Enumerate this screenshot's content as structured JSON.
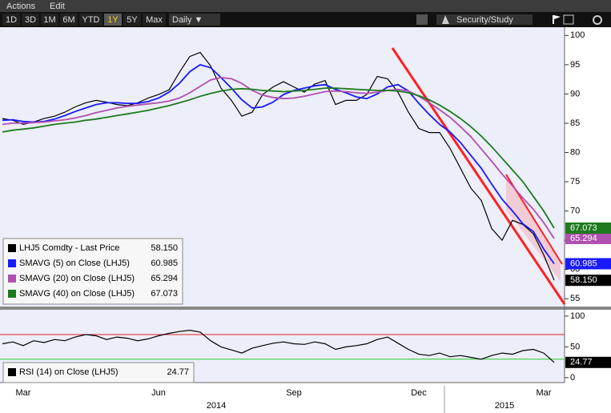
{
  "toolbar": {
    "menu": [
      "Actions",
      "Edit"
    ],
    "periods": [
      "1D",
      "3D",
      "1M",
      "6M",
      "YTD",
      "1Y",
      "5Y",
      "Max"
    ],
    "selected": 5,
    "frequency": "Daily ▼",
    "study": "Security/Study"
  },
  "chart_data": [
    {
      "type": "line",
      "categories": [
        null,
        null,
        "Mar",
        null,
        null,
        null,
        null,
        null,
        null,
        null,
        null,
        null,
        null,
        null,
        null,
        "Jun",
        null,
        null,
        null,
        null,
        null,
        null,
        null,
        null,
        null,
        null,
        null,
        null,
        "Sep",
        null,
        null,
        null,
        null,
        null,
        null,
        null,
        null,
        null,
        null,
        null,
        "Dec",
        null,
        null,
        null,
        null,
        null,
        null,
        null,
        null,
        null,
        null,
        null,
        "Mar",
        null
      ],
      "ylim": [
        53.8,
        101
      ],
      "yticks": [
        55,
        60,
        65,
        70,
        75,
        80,
        85,
        90,
        95,
        100
      ],
      "legend": "bottom-left",
      "series": [
        {
          "name": "LHJ5 Comdty - Last Price",
          "color": "#000000",
          "values": [
            85.8,
            85.5,
            84.8,
            85.2,
            85.8,
            86.2,
            86.9,
            87.8,
            88.5,
            88.9,
            88.6,
            88.2,
            88,
            88.5,
            89.3,
            89.9,
            90.7,
            93.7,
            96.4,
            97.1,
            94.8,
            91,
            88.9,
            86.2,
            86.9,
            89.9,
            91.2,
            92.1,
            91.2,
            90.3,
            91.7,
            92.3,
            88.2,
            88.9,
            88.9,
            89.9,
            93,
            92.6,
            90.3,
            86.9,
            84.1,
            83.4,
            83.4,
            80.7,
            77.3,
            73.9,
            71.8,
            67,
            65,
            68.4,
            67.7,
            66.1,
            62.5,
            58.15
          ],
          "value_labels": [
            null,
            null,
            null,
            null,
            null,
            null,
            null,
            null,
            null,
            null,
            null,
            null,
            null,
            null,
            null,
            null,
            null,
            null,
            null,
            null,
            null,
            null,
            null,
            null,
            null,
            null,
            null,
            null,
            null,
            null,
            null,
            null,
            null,
            null,
            null,
            null,
            null,
            null,
            null,
            null,
            null,
            null,
            null,
            null,
            null,
            null,
            null,
            null,
            null,
            null,
            null,
            null,
            null,
            "58.150"
          ]
        },
        {
          "name": "SMAVG (5) on Close (LHJ5)",
          "color": "#1a1aff",
          "values": [
            85.5,
            85.6,
            85.3,
            85.2,
            85.3,
            85.7,
            86.3,
            87,
            87.6,
            88.2,
            88.5,
            88.5,
            88.4,
            88.4,
            88.7,
            89.3,
            90.3,
            91.8,
            93.8,
            95,
            94.5,
            92.8,
            91,
            89,
            87.6,
            87.8,
            88.6,
            89.9,
            90.6,
            91,
            91.4,
            91.6,
            90.8,
            90.2,
            89.5,
            89.2,
            90,
            91.2,
            91.6,
            90.5,
            88.4,
            86.5,
            84.8,
            83.5,
            81.7,
            79.5,
            77.3,
            74.6,
            72,
            70,
            67.8,
            66.5,
            63.5,
            60.985
          ]
        },
        {
          "name": "SMAVG (20) on Close (LHJ5)",
          "color": "#b050b0",
          "values": [
            84.8,
            85,
            85,
            85.1,
            85.2,
            85.4,
            85.6,
            85.9,
            86.3,
            86.8,
            87.2,
            87.6,
            87.9,
            88.1,
            88.3,
            88.5,
            88.8,
            89.3,
            90.2,
            91.3,
            92.4,
            92.8,
            92.6,
            91.8,
            90.6,
            89.8,
            89.4,
            89.2,
            89.3,
            89.6,
            90,
            90.4,
            90.5,
            90.4,
            90.2,
            90.1,
            90.3,
            90.6,
            90.8,
            90.5,
            89.6,
            88.5,
            87.3,
            86,
            84.4,
            82.7,
            80.6,
            78.5,
            76.3,
            74.3,
            72.2,
            70.3,
            68,
            65.294
          ]
        },
        {
          "name": "SMAVG (40) on Close (LHJ5)",
          "color": "#1e7a1e",
          "values": [
            83.5,
            83.8,
            84,
            84.2,
            84.5,
            84.8,
            85,
            85.2,
            85.5,
            85.7,
            86,
            86.3,
            86.6,
            86.9,
            87.2,
            87.6,
            88,
            88.5,
            89,
            89.6,
            90.1,
            90.5,
            90.8,
            90.9,
            90.8,
            90.6,
            90.5,
            90.4,
            90.5,
            90.6,
            90.8,
            91,
            91,
            90.9,
            90.8,
            90.7,
            90.6,
            90.6,
            90.5,
            90.2,
            89.7,
            89,
            88.1,
            87,
            85.8,
            84.4,
            82.8,
            81,
            79,
            77,
            75,
            72.5,
            70,
            67.073
          ]
        }
      ]
    },
    {
      "type": "line",
      "categories": [
        null,
        null,
        "Mar",
        null,
        null,
        null,
        null,
        null,
        null,
        null,
        null,
        null,
        null,
        null,
        null,
        "Jun",
        null,
        null,
        null,
        null,
        null,
        null,
        null,
        null,
        null,
        null,
        null,
        null,
        "Sep",
        null,
        null,
        null,
        null,
        null,
        null,
        null,
        null,
        null,
        null,
        null,
        "Dec",
        null,
        null,
        null,
        null,
        null,
        null,
        null,
        null,
        null,
        null,
        null,
        "Mar",
        null
      ],
      "year_labels": [
        "2014",
        "2015"
      ],
      "ylim": [
        -8,
        109
      ],
      "yticks": [
        0,
        50,
        100
      ],
      "legend": "bottom-left",
      "reference_lines": [
        {
          "value": 70,
          "color": "#e02020"
        },
        {
          "value": 30,
          "color": "#22cc22"
        }
      ],
      "series": [
        {
          "name": "RSI (14) on Close (LHJ5)",
          "color": "#000000",
          "values": [
            55,
            58,
            52,
            60,
            57,
            62,
            60,
            66,
            70,
            68,
            62,
            66,
            64,
            60,
            63,
            68,
            72,
            75,
            77,
            74,
            60,
            50,
            45,
            40,
            48,
            52,
            56,
            58,
            55,
            54,
            58,
            55,
            46,
            50,
            52,
            55,
            62,
            66,
            56,
            46,
            38,
            36,
            40,
            34,
            36,
            33,
            30,
            36,
            40,
            38,
            44,
            46,
            40,
            24.77
          ]
        }
      ]
    }
  ]
}
